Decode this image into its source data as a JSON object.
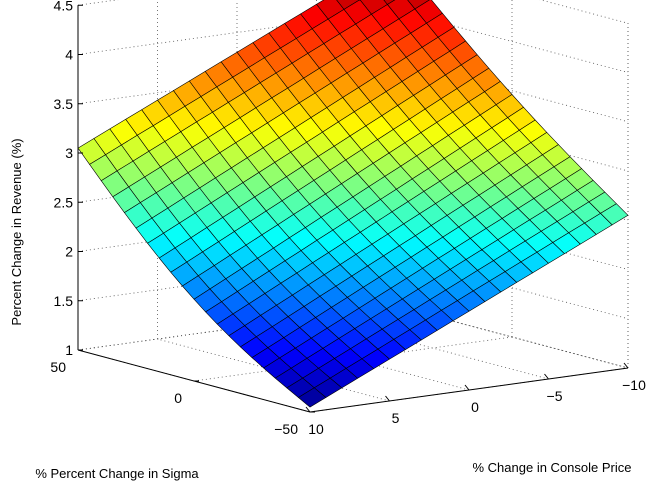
{
  "chart_data": {
    "type": "surface",
    "title": "",
    "xlabel": "% Change in Console Price",
    "ylabel": "% Percent Change in Sigma",
    "zlabel": "Percent Change in Revenue (%)",
    "x_range": [
      -10,
      10
    ],
    "y_range": [
      -50,
      50
    ],
    "zlim": [
      1,
      4.5
    ],
    "x_ticks": [
      10,
      5,
      0,
      -5,
      -10
    ],
    "y_ticks": [
      50,
      0,
      -50
    ],
    "z_ticks": [
      1,
      1.5,
      2,
      2.5,
      3,
      3.5,
      4,
      4.5
    ],
    "x_tick_labels": [
      "10",
      "5",
      "0",
      "−5",
      "−10"
    ],
    "y_tick_labels": [
      "50",
      "0",
      "−50"
    ],
    "z_tick_labels": [
      "1",
      "1.5",
      "2",
      "2.5",
      "3",
      "3.5",
      "4",
      "4.5"
    ],
    "grid": true,
    "colormap": "jet",
    "corner_values": [
      {
        "x": 10,
        "y": 50,
        "z": 3.05
      },
      {
        "x": -10,
        "y": 50,
        "z": 4.55
      },
      {
        "x": 10,
        "y": -50,
        "z": 1.05
      },
      {
        "x": -10,
        "y": -50,
        "z": 2.55
      }
    ],
    "x_grid_count": 21,
    "y_grid_count": 21
  }
}
